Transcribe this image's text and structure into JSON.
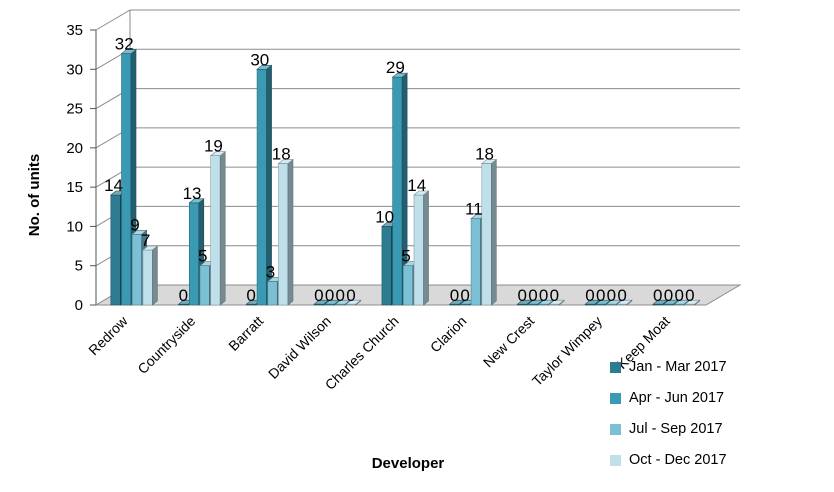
{
  "chart_data": {
    "type": "bar",
    "xlabel": "Developer",
    "ylabel": "No. of units",
    "ylim": [
      0,
      35
    ],
    "yticks": [
      "0",
      "5",
      "10",
      "15",
      "20",
      "25",
      "30",
      "35"
    ],
    "grid": true,
    "legend_position": "right",
    "categories": [
      "Redrow",
      "Countryside",
      "Barratt",
      "David Wilson",
      "Charles Church",
      "Clarion",
      "New Crest",
      "Taylor Wimpey",
      "Keep Moat"
    ],
    "series": [
      {
        "name": "Jan - Mar 2017",
        "values": [
          14,
          0,
          0,
          0,
          10,
          0,
          0,
          0,
          0
        ],
        "color": "#2E7C92"
      },
      {
        "name": "Apr - Jun 2017",
        "values": [
          32,
          13,
          30,
          0,
          29,
          0,
          0,
          0,
          0
        ],
        "color": "#3A9AB4"
      },
      {
        "name": "Jul - Sep 2017",
        "values": [
          9,
          5,
          3,
          0,
          5,
          11,
          0,
          0,
          0
        ],
        "color": "#7CC0D6"
      },
      {
        "name": "Oct - Dec 2017",
        "values": [
          7,
          19,
          18,
          0,
          14,
          18,
          0,
          0,
          0
        ],
        "color": "#BFE0EA"
      }
    ]
  }
}
